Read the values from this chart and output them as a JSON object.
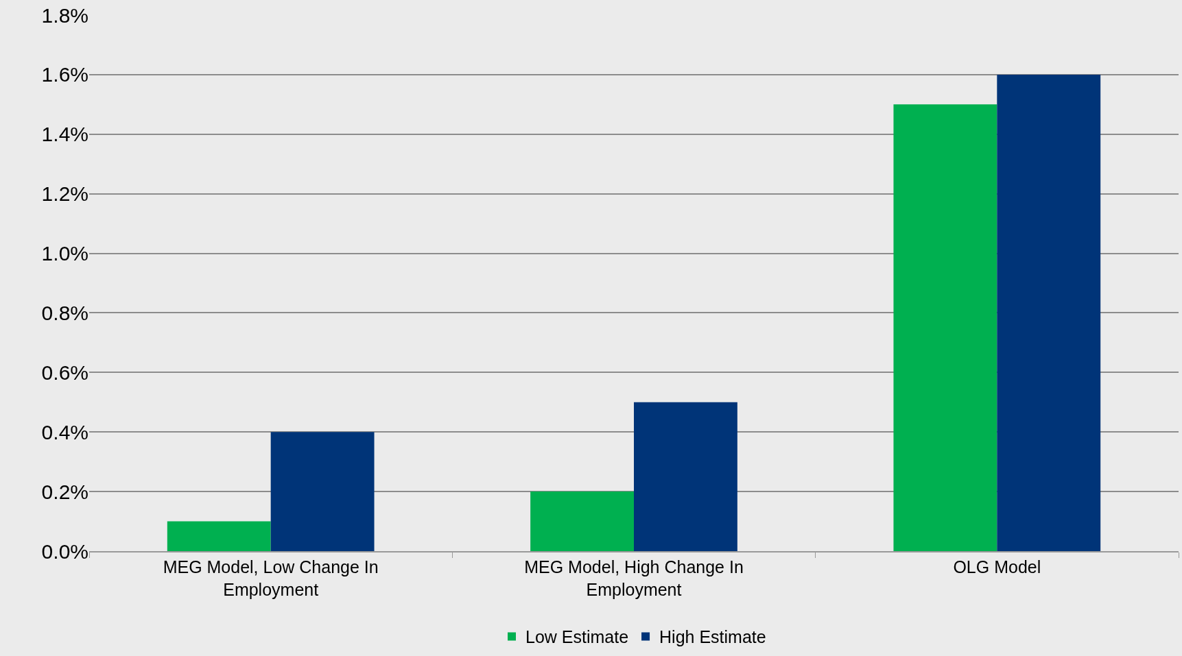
{
  "chart_data": {
    "type": "bar",
    "categories": [
      "MEG Model, Low Change In Employment",
      "MEG Model, High Change In Employment",
      "OLG Model"
    ],
    "series": [
      {
        "name": "Low Estimate",
        "color": "#00b050",
        "values": [
          0.1,
          0.2,
          1.5
        ]
      },
      {
        "name": "High Estimate",
        "color": "#003478",
        "values": [
          0.4,
          0.5,
          1.6
        ]
      }
    ],
    "ylim": [
      0,
      1.8
    ],
    "yticks": [
      {
        "value": 0,
        "label": "0.0%"
      },
      {
        "value": 0.2,
        "label": "0.2%"
      },
      {
        "value": 0.4,
        "label": "0.4%"
      },
      {
        "value": 0.6,
        "label": "0.6%"
      },
      {
        "value": 0.8,
        "label": "0.8%"
      },
      {
        "value": 1.0,
        "label": "1.0%"
      },
      {
        "value": 1.2,
        "label": "1.2%"
      },
      {
        "value": 1.4,
        "label": "1.4%"
      },
      {
        "value": 1.6,
        "label": "1.6%"
      },
      {
        "value": 1.8,
        "label": "1.8%"
      }
    ],
    "grid": "y",
    "legend": "bottom"
  }
}
